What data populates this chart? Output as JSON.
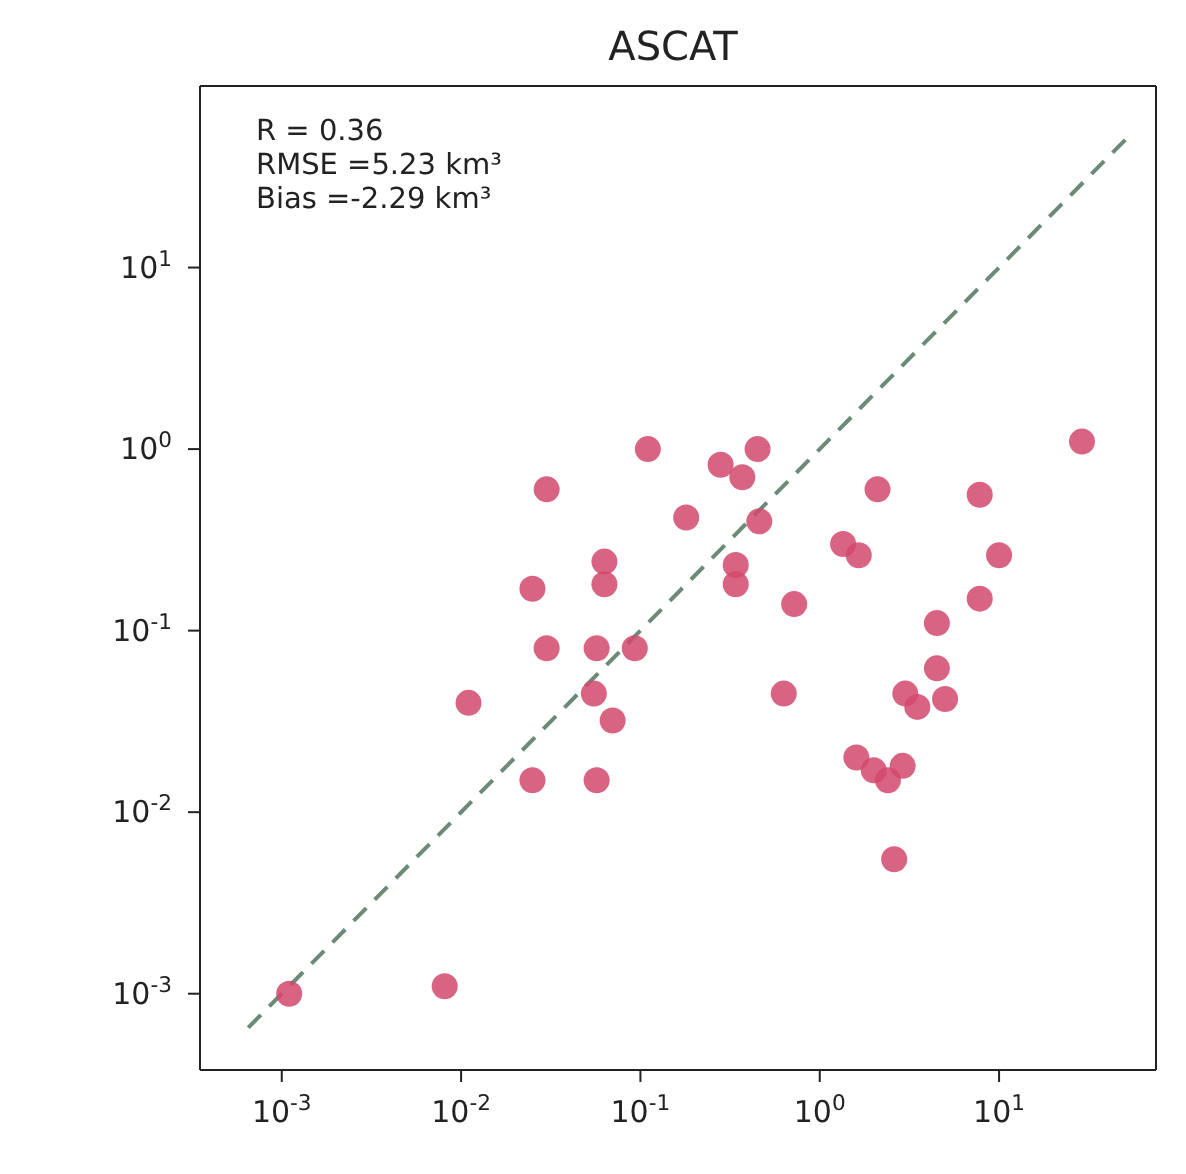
{
  "chart_data": {
    "type": "scatter",
    "title": "ASCAT",
    "annotations": [
      "R = 0.36",
      "RMSE =5.23 km³",
      "Bias =-2.29 km³"
    ],
    "log": "xy",
    "marker": "circle",
    "xlim": [
      0.00035,
      75
    ],
    "ylim": [
      0.00038,
      100
    ],
    "xticks": [
      {
        "value": 0.001,
        "label": "10$^{-3}$"
      },
      {
        "value": 0.01,
        "label": "10$^{-2}$"
      },
      {
        "value": 0.1,
        "label": "10$^{-1}$"
      },
      {
        "value": 1,
        "label": "10$^{0}$"
      },
      {
        "value": 10,
        "label": "10$^{1}$"
      }
    ],
    "yticks": [
      {
        "value": 0.001,
        "label": "10$^{-3}$"
      },
      {
        "value": 0.01,
        "label": "10$^{-2}$"
      },
      {
        "value": 0.1,
        "label": "10$^{-1}$"
      },
      {
        "value": 1,
        "label": "10$^{0}$"
      },
      {
        "value": 10,
        "label": "10$^{1}$"
      }
    ],
    "series": [
      {
        "type": "line",
        "line_style": "dashed",
        "marker": "none",
        "color": "#6b8a78",
        "x": [
          0.00065,
          52
        ],
        "values": [
          0.00065,
          52
        ]
      },
      {
        "color": "#d2486c",
        "x": [
          0.0011,
          0.0081,
          0.011,
          0.025,
          0.03,
          0.03,
          0.025,
          0.057,
          0.055,
          0.057,
          0.063,
          0.063,
          0.07,
          0.093,
          0.11,
          0.18,
          0.28,
          0.37,
          0.45,
          0.46,
          0.34,
          0.34,
          0.72,
          0.63,
          1.35,
          1.65,
          2.1,
          1.6,
          2.0,
          2.4,
          2.9,
          2.6,
          3.0,
          3.5,
          5.0,
          4.5,
          4.5,
          7.8,
          10,
          7.8,
          29
        ],
        "values": [
          0.001,
          0.0011,
          0.04,
          0.17,
          0.6,
          0.08,
          0.015,
          0.08,
          0.045,
          0.015,
          0.24,
          0.18,
          0.032,
          0.08,
          1.0,
          0.42,
          0.82,
          0.7,
          1.0,
          0.4,
          0.23,
          0.18,
          0.14,
          0.045,
          0.3,
          0.26,
          0.6,
          0.02,
          0.017,
          0.015,
          0.018,
          0.0055,
          0.045,
          0.038,
          0.042,
          0.062,
          0.11,
          0.15,
          0.26,
          0.56,
          1.1
        ]
      }
    ]
  }
}
